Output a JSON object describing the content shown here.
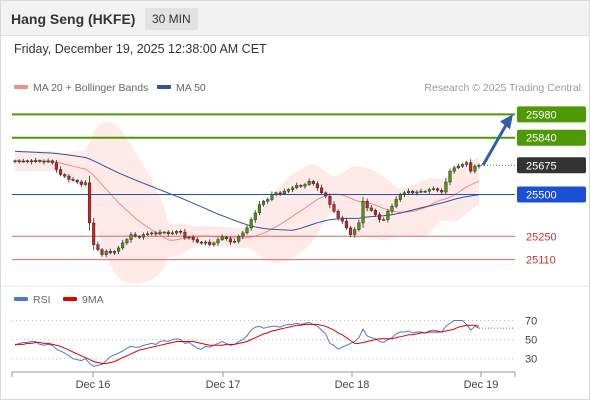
{
  "header": {
    "title": "Hang Seng (HKFE)",
    "timeframe": "30 MIN",
    "datetime": "Friday, December 19, 2025 12:38:00 AM CET"
  },
  "legend": {
    "ma20": "MA 20 + Bollinger Bands",
    "ma50": "MA 50",
    "source": "Research © 2025 Trading Central",
    "ma20_color": "#f28b82",
    "ma50_color": "#2f5597"
  },
  "rsi_legend": {
    "rsi": "RSI",
    "ma": "9MA",
    "rsi_color": "#4a7bd4",
    "ma_color": "#e00000"
  },
  "levels": [
    {
      "value": 25980,
      "label": "25980",
      "kind": "target",
      "color": "#4d9a06"
    },
    {
      "value": 25840,
      "label": "25840",
      "kind": "target",
      "color": "#4d9a06"
    },
    {
      "value": 25675,
      "label": "25675",
      "kind": "last",
      "color": "#333333"
    },
    {
      "value": 25500,
      "label": "25500",
      "kind": "pivot",
      "color": "#1a4fd6"
    },
    {
      "value": 25250,
      "label": "25250",
      "kind": "support",
      "color": "#e06666"
    },
    {
      "value": 25110,
      "label": "25110",
      "kind": "support",
      "color": "#e06666"
    }
  ],
  "x_axis": {
    "labels": [
      "Dec 16",
      "Dec 17",
      "Dec 18",
      "Dec 19"
    ]
  },
  "rsi_axis": {
    "ticks": [
      70,
      50,
      30
    ]
  },
  "chart_data": {
    "type": "candlestick",
    "title": "Hang Seng (HKFE)",
    "interval": "30 MIN",
    "price_range": [
      25030,
      26060
    ],
    "rsi_range": [
      15,
      80
    ],
    "closes": [
      25702,
      25700,
      25698,
      25702,
      25696,
      25704,
      25700,
      25695,
      25702,
      25690,
      25650,
      25620,
      25610,
      25590,
      25585,
      25575,
      25560,
      25570,
      25330,
      25200,
      25170,
      25140,
      25160,
      25150,
      25160,
      25180,
      25210,
      25230,
      25260,
      25250,
      25245,
      25260,
      25265,
      25270,
      25265,
      25275,
      25275,
      25265,
      25270,
      25280,
      25275,
      25240,
      25245,
      25230,
      25215,
      25210,
      25215,
      25200,
      25210,
      25230,
      25245,
      25235,
      25215,
      25220,
      25250,
      25270,
      25300,
      25350,
      25390,
      25440,
      25460,
      25470,
      25500,
      25510,
      25505,
      25520,
      25530,
      25540,
      25555,
      25550,
      25560,
      25580,
      25565,
      25540,
      25510,
      25490,
      25440,
      25400,
      25360,
      25340,
      25300,
      25260,
      25290,
      25330,
      25460,
      25420,
      25405,
      25380,
      25350,
      25350,
      25400,
      25430,
      25470,
      25500,
      25510,
      25520,
      25510,
      25515,
      25520,
      25520,
      25530,
      25535,
      25525,
      25515,
      25575,
      25640,
      25660,
      25670,
      25680,
      25690,
      25640,
      25670,
      25675
    ],
    "rsi": [
      44,
      46,
      47,
      47,
      48,
      48,
      45,
      44,
      45,
      44,
      40,
      38,
      36,
      33,
      30,
      29,
      28,
      30,
      25,
      22,
      23,
      24,
      28,
      32,
      34,
      36,
      38,
      41,
      43,
      42,
      42,
      44,
      45,
      46,
      45,
      48,
      49,
      48,
      50,
      51,
      50,
      46,
      47,
      44,
      41,
      40,
      43,
      42,
      44,
      46,
      48,
      46,
      44,
      45,
      48,
      50,
      54,
      60,
      63,
      64,
      62,
      63,
      64,
      64,
      63,
      65,
      66,
      66,
      67,
      66,
      67,
      68,
      66,
      64,
      60,
      56,
      46,
      44,
      40,
      42,
      44,
      46,
      48,
      52,
      61,
      54,
      52,
      51,
      48,
      47,
      50,
      52,
      56,
      58,
      58,
      59,
      57,
      58,
      58,
      57,
      59,
      60,
      59,
      58,
      64,
      67,
      70,
      70,
      70,
      66,
      60,
      64,
      62
    ],
    "rsi_ma": [
      45,
      45,
      45,
      46,
      46,
      47,
      47,
      46,
      46,
      45,
      44,
      43,
      41,
      39,
      37,
      35,
      33,
      31,
      29,
      27,
      26,
      25,
      25,
      26,
      27,
      29,
      31,
      33,
      35,
      37,
      39,
      40,
      41,
      42,
      43,
      44,
      45,
      46,
      47,
      48,
      48,
      48,
      48,
      48,
      47,
      46,
      45,
      44,
      44,
      44,
      44,
      45,
      45,
      45,
      46,
      47,
      48,
      50,
      52,
      54,
      56,
      57,
      59,
      60,
      61,
      62,
      63,
      64,
      65,
      65,
      66,
      66,
      66,
      66,
      65,
      64,
      62,
      60,
      57,
      55,
      52,
      49,
      46,
      46,
      47,
      48,
      49,
      50,
      51,
      51,
      51,
      51,
      52,
      53,
      54,
      55,
      55,
      56,
      57,
      57,
      58,
      58,
      58,
      58,
      59,
      60,
      61,
      63,
      64,
      65,
      65,
      65,
      64
    ]
  }
}
